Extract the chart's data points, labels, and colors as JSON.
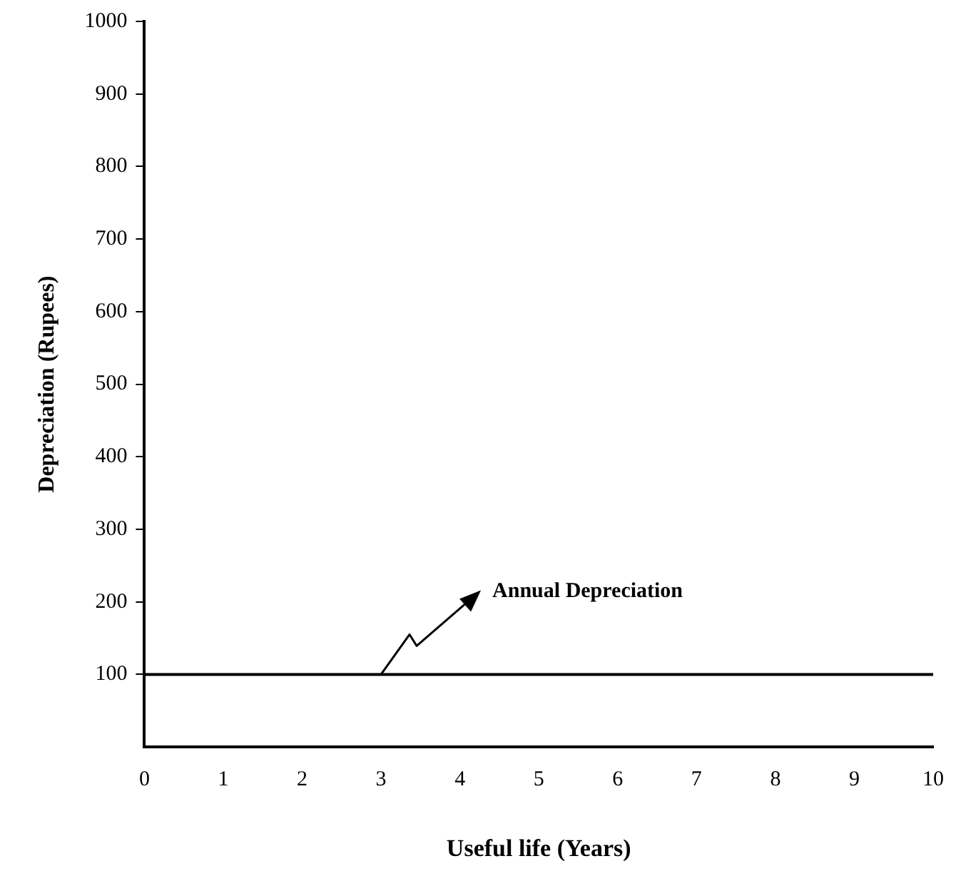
{
  "chart_data": {
    "type": "line",
    "xlabel": "Useful life (Years)",
    "ylabel": "Depreciation (Rupees)",
    "x": [
      0,
      10
    ],
    "series": [
      {
        "color": "#000000",
        "values": [
          100,
          100
        ]
      }
    ],
    "xlim": [
      0,
      10
    ],
    "xticks": [
      0,
      1,
      2,
      3,
      4,
      5,
      6,
      7,
      8,
      9,
      10
    ],
    "ylim": [
      0,
      1000
    ],
    "yticks": [
      100,
      200,
      300,
      400,
      500,
      600,
      700,
      800,
      900,
      1000
    ],
    "grid": false,
    "legend": false,
    "marker": "none",
    "line_style": "solid",
    "annotations": [
      {
        "text": "Annual Depreciation",
        "x": 3,
        "y": 100
      }
    ]
  }
}
